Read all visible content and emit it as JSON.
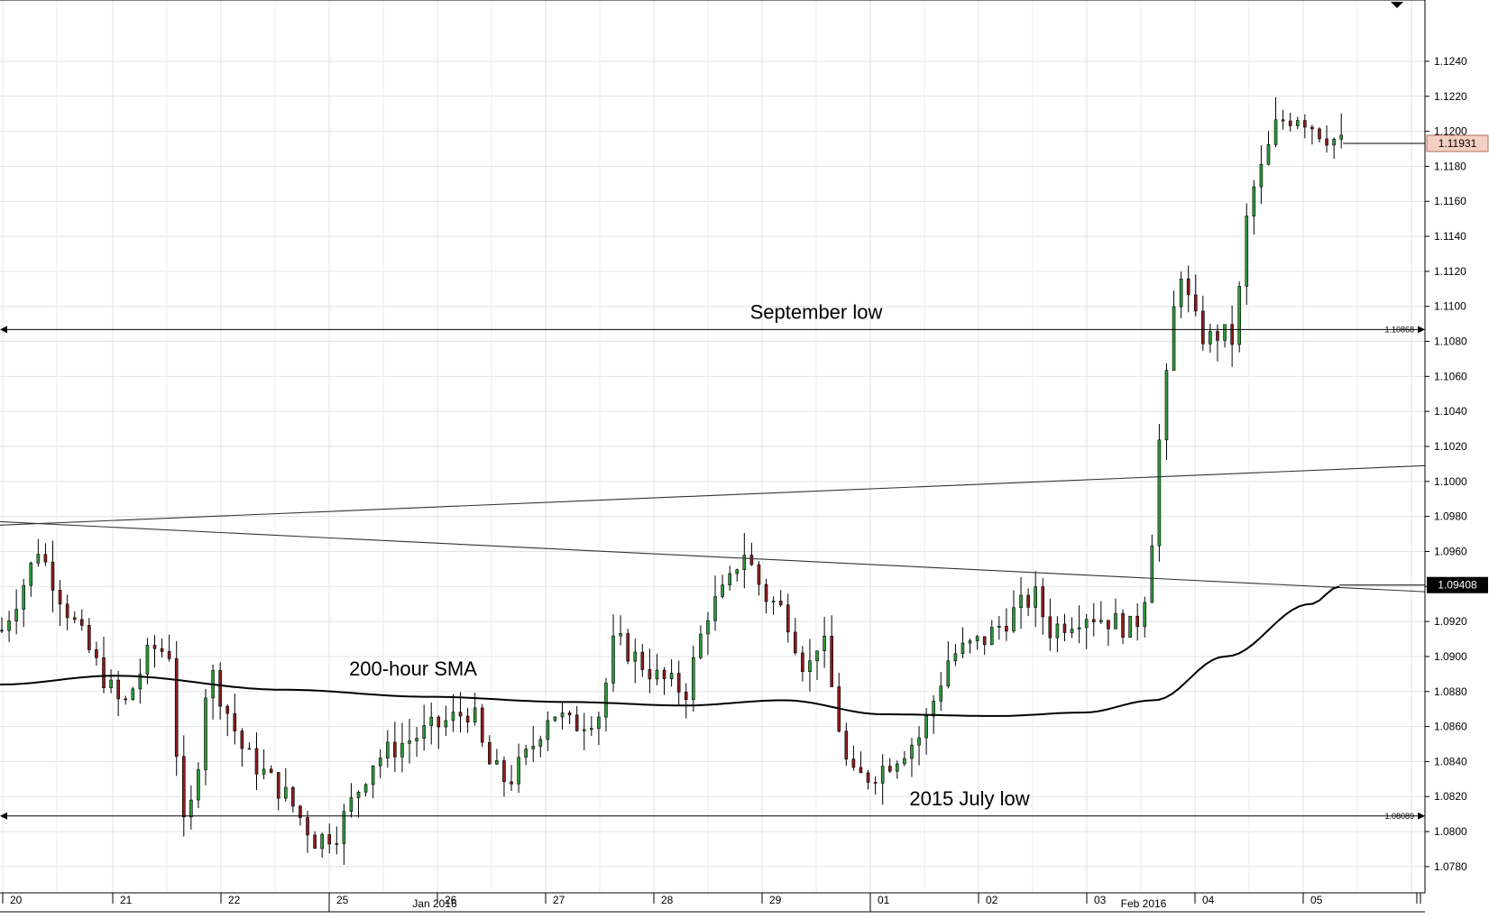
{
  "chart_data": {
    "type": "candlestick",
    "title": "",
    "xlabel": "",
    "ylabel": "",
    "ylim": [
      1.0765,
      1.1275
    ],
    "y_ticks": [
      "1.0780",
      "1.0800",
      "1.0820",
      "1.0840",
      "1.0860",
      "1.0880",
      "1.0900",
      "1.0920",
      "1.0940",
      "1.0960",
      "1.0980",
      "1.1000",
      "1.1020",
      "1.1040",
      "1.1060",
      "1.1080",
      "1.1100",
      "1.1120",
      "1.1140",
      "1.1160",
      "1.1180",
      "1.1200",
      "1.1220",
      "1.1240"
    ],
    "x_day_labels": [
      "20",
      "21",
      "22",
      "25",
      "26",
      "27",
      "28",
      "29",
      "01",
      "02",
      "03",
      "04",
      "05"
    ],
    "x_month_labels": [
      "Jan 2016",
      "Feb 2016"
    ],
    "price_tag": "1.11931",
    "sma_tag": "1.09408",
    "levels": [
      {
        "name": "September low",
        "value": 1.10868,
        "value_label": "1.10868"
      },
      {
        "name": "2015 July low",
        "value": 1.08089,
        "value_label": "1.08089"
      }
    ],
    "sma_label": "200-hour SMA",
    "sma_anchors": [
      [
        0,
        1.0884
      ],
      [
        0.08,
        1.0889
      ],
      [
        0.2,
        1.0881
      ],
      [
        0.3,
        1.0877
      ],
      [
        0.4,
        1.0874
      ],
      [
        0.48,
        1.0872
      ],
      [
        0.55,
        1.0875
      ],
      [
        0.62,
        1.0867
      ],
      [
        0.7,
        1.0866
      ],
      [
        0.76,
        1.0868
      ],
      [
        0.81,
        1.0875
      ],
      [
        0.86,
        1.09
      ],
      [
        0.92,
        1.093
      ],
      [
        0.94,
        1.094
      ]
    ],
    "trendlines": [
      {
        "name": "rising",
        "from": [
          0,
          1.0975
        ],
        "to": [
          1,
          1.1009
        ]
      },
      {
        "name": "falling",
        "from": [
          0,
          1.0977
        ],
        "to": [
          1,
          1.0937
        ]
      }
    ],
    "waypoints": [
      [
        0,
        1.0915
      ],
      [
        0.02,
        1.095
      ],
      [
        0.025,
        1.0963
      ],
      [
        0.045,
        1.0928
      ],
      [
        0.07,
        1.089
      ],
      [
        0.085,
        1.087
      ],
      [
        0.105,
        1.0905
      ],
      [
        0.12,
        1.0902
      ],
      [
        0.125,
        1.0795
      ],
      [
        0.135,
        1.082
      ],
      [
        0.145,
        1.0895
      ],
      [
        0.17,
        1.0845
      ],
      [
        0.2,
        1.082
      ],
      [
        0.22,
        1.0795
      ],
      [
        0.235,
        1.08
      ],
      [
        0.26,
        1.084
      ],
      [
        0.28,
        1.085
      ],
      [
        0.3,
        1.0858
      ],
      [
        0.33,
        1.087
      ],
      [
        0.34,
        1.084
      ],
      [
        0.355,
        1.0828
      ],
      [
        0.37,
        1.0845
      ],
      [
        0.385,
        1.087
      ],
      [
        0.4,
        1.086
      ],
      [
        0.42,
        1.0868
      ],
      [
        0.43,
        1.091
      ],
      [
        0.46,
        1.0888
      ],
      [
        0.48,
        1.088
      ],
      [
        0.495,
        1.0925
      ],
      [
        0.51,
        1.094
      ],
      [
        0.52,
        1.0962
      ],
      [
        0.535,
        1.0935
      ],
      [
        0.55,
        1.0925
      ],
      [
        0.565,
        1.089
      ],
      [
        0.575,
        1.0915
      ],
      [
        0.585,
        1.087
      ],
      [
        0.595,
        1.083
      ],
      [
        0.61,
        1.0832
      ],
      [
        0.62,
        1.0838
      ],
      [
        0.645,
        1.0855
      ],
      [
        0.665,
        1.09
      ],
      [
        0.69,
        1.091
      ],
      [
        0.71,
        1.0925
      ],
      [
        0.725,
        1.0935
      ],
      [
        0.735,
        1.0915
      ],
      [
        0.76,
        1.0925
      ],
      [
        0.78,
        1.092
      ],
      [
        0.795,
        1.0915
      ],
      [
        0.805,
        1.0945
      ],
      [
        0.81,
        1.1
      ],
      [
        0.815,
        1.105
      ],
      [
        0.82,
        1.1065
      ],
      [
        0.825,
        1.113
      ],
      [
        0.835,
        1.1095
      ],
      [
        0.845,
        1.108
      ],
      [
        0.855,
        1.1085
      ],
      [
        0.865,
        1.108
      ],
      [
        0.875,
        1.116
      ],
      [
        0.885,
        1.118
      ],
      [
        0.895,
        1.1205
      ],
      [
        0.91,
        1.121
      ],
      [
        0.925,
        1.12
      ],
      [
        0.94,
        1.1193
      ]
    ],
    "candles": 185,
    "seed": 7
  }
}
